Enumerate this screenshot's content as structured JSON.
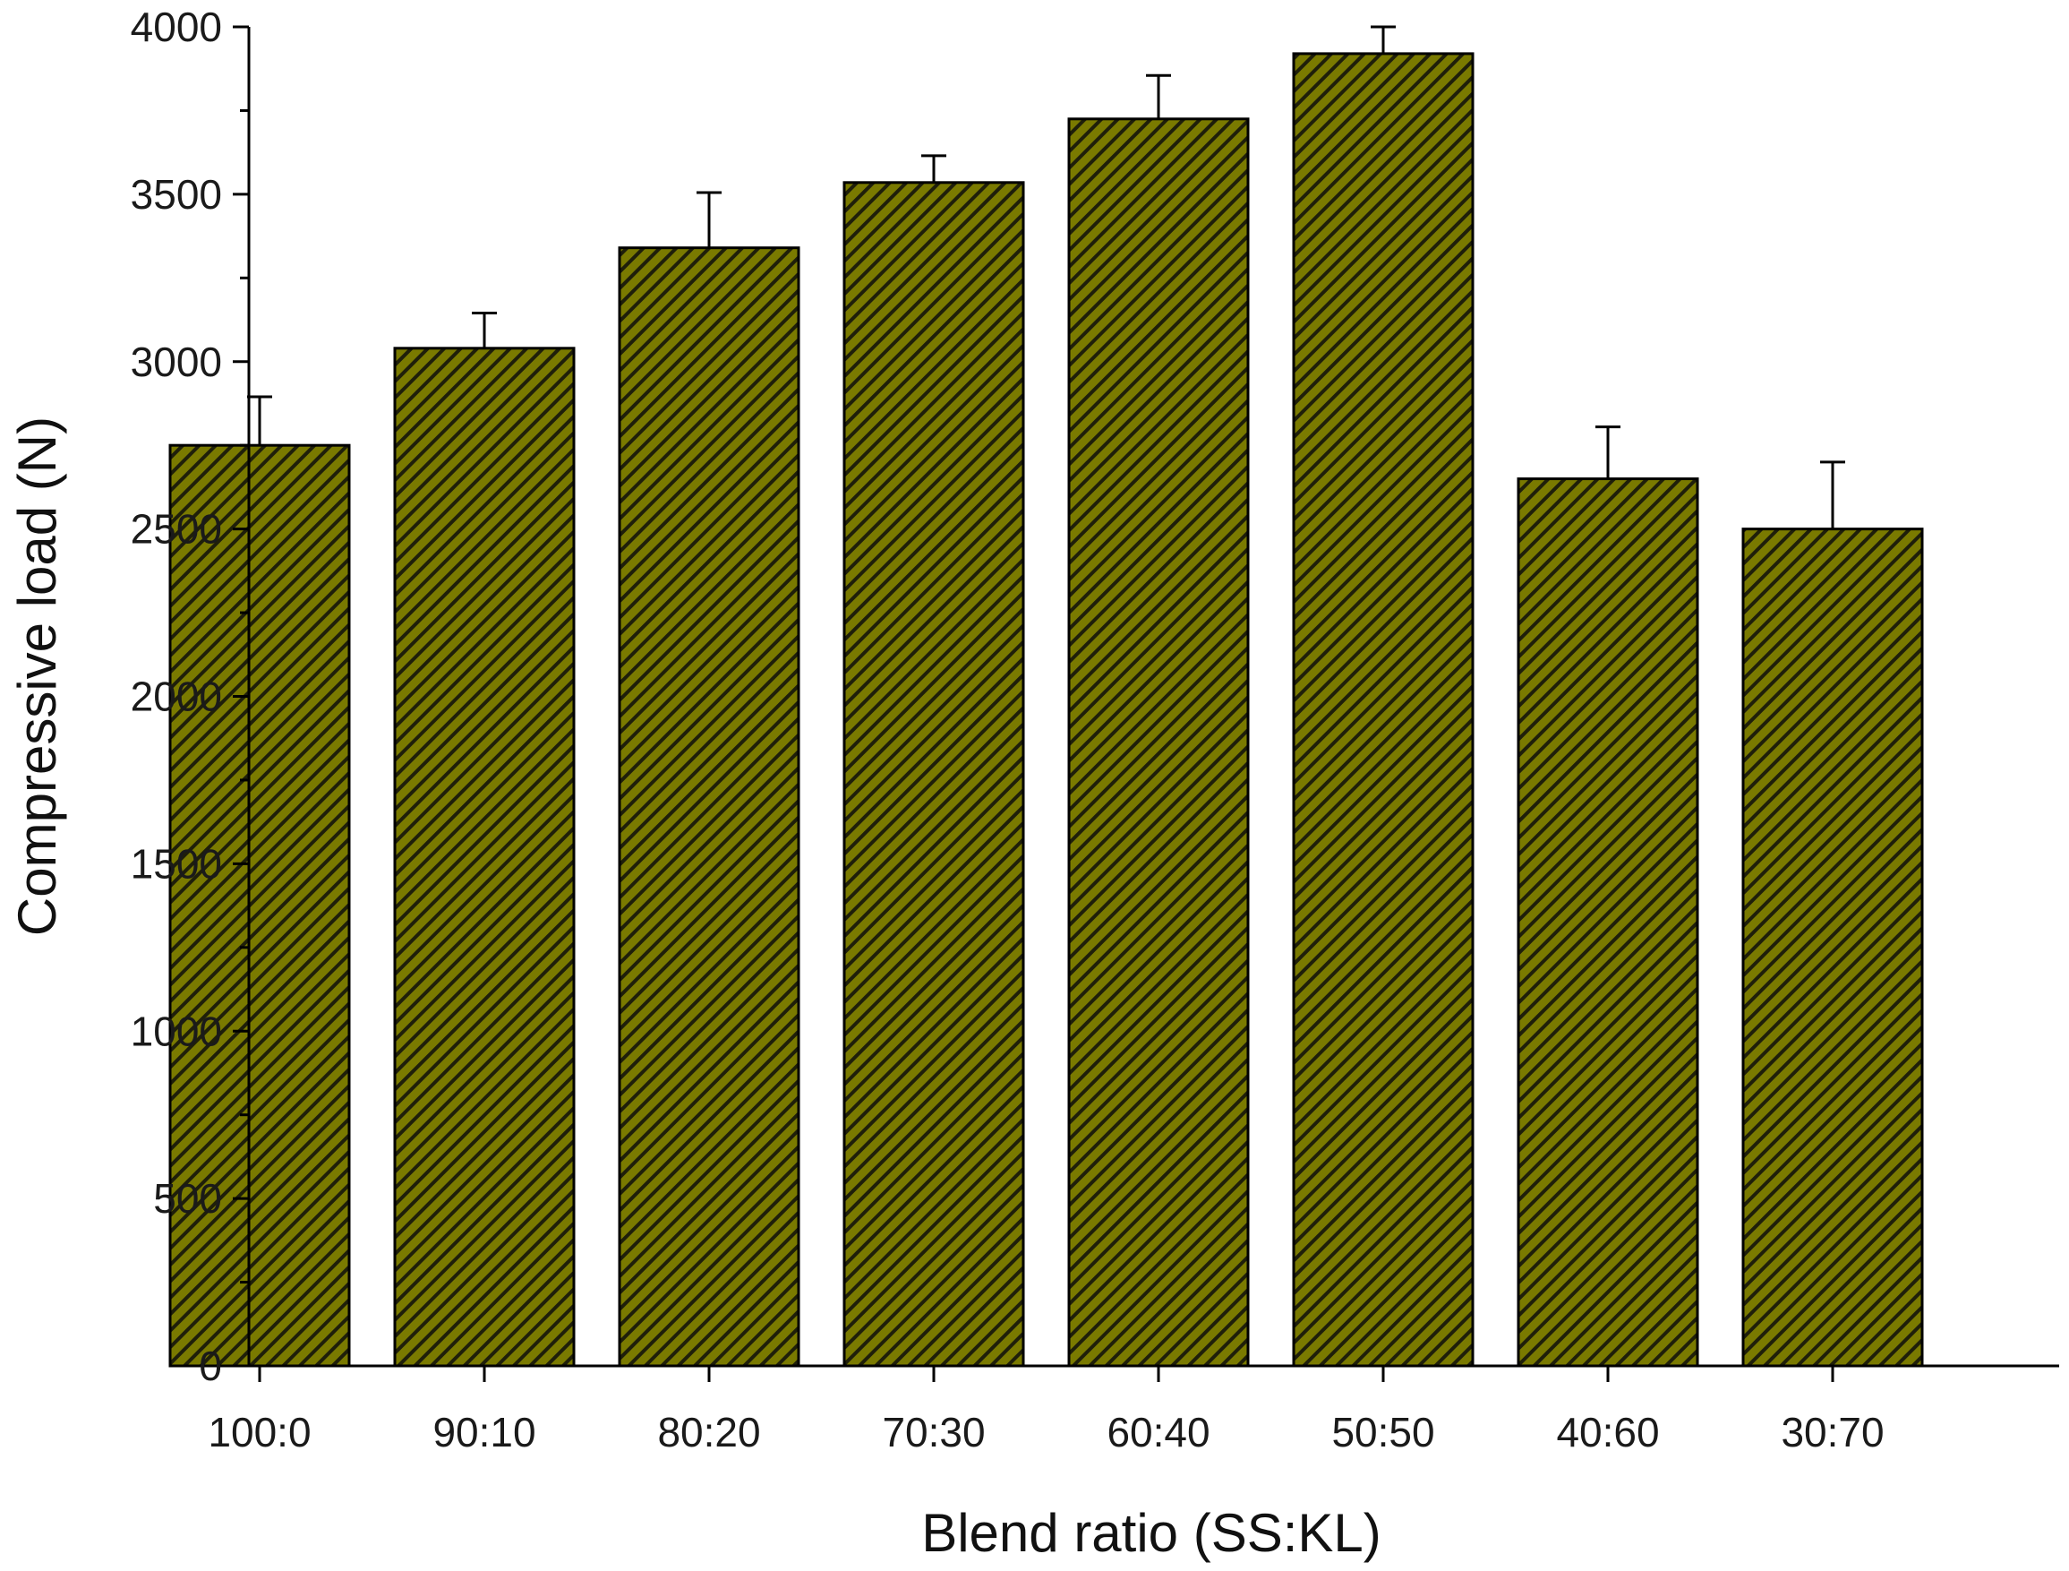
{
  "chart_data": {
    "type": "bar",
    "title": "",
    "xlabel": "Blend ratio (SS:KL)",
    "ylabel": "Compressive load (N)",
    "categories": [
      "100:0",
      "90:10",
      "80:20",
      "70:30",
      "60:40",
      "50:50",
      "40:60",
      "30:70"
    ],
    "values": [
      2750,
      3040,
      3340,
      3535,
      3725,
      3920,
      2650,
      2500
    ],
    "errors": [
      145,
      105,
      165,
      80,
      130,
      80,
      155,
      200
    ],
    "ylim": [
      0,
      4000
    ],
    "yticks": [
      0,
      500,
      1000,
      1500,
      2000,
      2500,
      3000,
      3500,
      4000
    ],
    "ytick_labels": [
      "0",
      "500",
      "1000",
      "1500",
      "2000",
      "2500",
      "3000",
      "3500",
      "4000"
    ],
    "grid": false,
    "legend": "none",
    "colors": {
      "bar_fill": "#7a7a00",
      "hatch": "#1f1f0a",
      "outline": "#000000"
    }
  }
}
